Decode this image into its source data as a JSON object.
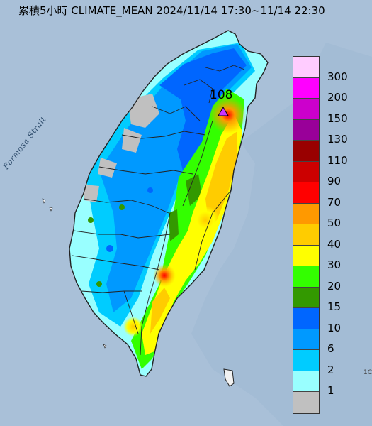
{
  "title": "累積5小時 CLIMATE_MEAN 2024/11/14 17:30~11/14 22:30",
  "sea_label": "Formosa Strait",
  "max_value": "108",
  "corner_mark": "1C",
  "colors": {
    "sea": "#a9c0d8",
    "land_outline": "#222222",
    "max_marker": "#cc33ff"
  },
  "legend": {
    "labels": [
      "300",
      "200",
      "150",
      "130",
      "110",
      "90",
      "70",
      "50",
      "40",
      "30",
      "20",
      "15",
      "10",
      "6",
      "2",
      "1"
    ],
    "colors": [
      "#ffccff",
      "#ff00ff",
      "#cc00cc",
      "#990099",
      "#990000",
      "#cc0000",
      "#ff0000",
      "#ff9900",
      "#ffcc00",
      "#ffff00",
      "#33ff00",
      "#339900",
      "#0066ff",
      "#0099ff",
      "#00ccff",
      "#99ffff",
      "#c0c0c0"
    ]
  }
}
